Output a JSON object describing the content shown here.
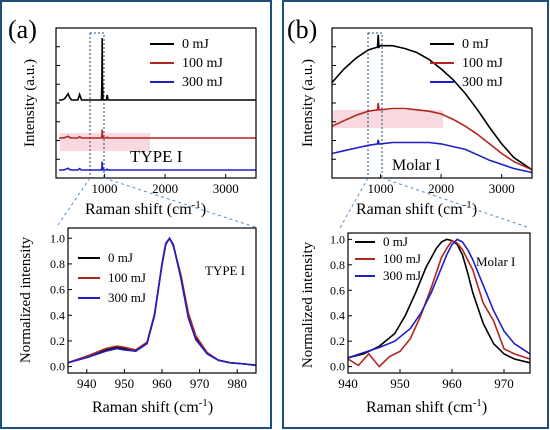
{
  "panels": [
    {
      "letter": "(a)",
      "top": {
        "sample_label": "TYPE I",
        "xlabel": "Raman shift (cm",
        "xlabel_sup": "-1",
        "xlabel_tail": ")",
        "ylabel": "Intensity (a.u.)",
        "xlim": [
          200,
          3500
        ],
        "xticks": [
          "1000",
          "2000",
          "3000"
        ],
        "legend": [
          "0 mJ",
          "100 mJ",
          "300 mJ"
        ]
      },
      "bottom": {
        "sample_label": "TYPE I",
        "xlabel": "Raman shift (cm",
        "xlabel_sup": "-1",
        "xlabel_tail": ")",
        "ylabel": "Normalized intensity",
        "xlim": [
          935,
          985
        ],
        "ylim": [
          -0.05,
          1.08
        ],
        "xticks": [
          "940",
          "950",
          "960",
          "970",
          "980"
        ],
        "yticks": [
          "0.0",
          "0.2",
          "0.4",
          "0.6",
          "0.8",
          "1.0"
        ],
        "legend": [
          "0 mJ",
          "100 mJ",
          "300 mJ"
        ]
      }
    },
    {
      "letter": "(b)",
      "top": {
        "sample_label": "Molar I",
        "xlabel": "Raman shift (cm",
        "xlabel_sup": "-1",
        "xlabel_tail": ")",
        "ylabel": "Intensity (a.u.)",
        "xlim": [
          200,
          3500
        ],
        "xticks": [
          "1000",
          "2000",
          "3000"
        ],
        "legend": [
          "0 mJ",
          "100 mJ",
          "300 mJ"
        ]
      },
      "bottom": {
        "sample_label": "Molar I",
        "xlabel": "Raman shift (cm",
        "xlabel_sup": "-1",
        "xlabel_tail": ")",
        "ylabel": "Normalized intensity",
        "xlim": [
          940,
          975
        ],
        "ylim": [
          -0.05,
          1.05
        ],
        "xticks": [
          "940",
          "950",
          "960",
          "970"
        ],
        "yticks": [
          "0.0",
          "0.2",
          "0.4",
          "0.6",
          "0.8",
          "1.0"
        ],
        "legend": [
          "0 mJ",
          "100 mJ",
          "300 mJ"
        ]
      }
    }
  ],
  "colors": {
    "s0": "#000000",
    "s100": "#b3261e",
    "s300": "#1f1fc8",
    "frame": "#1f4e79",
    "band_fill": "#f5b8c4"
  },
  "chart_data": [
    {
      "type": "line",
      "panel": "a-top",
      "sample_label": "TYPE I",
      "xlabel": "Raman shift (cm-1)",
      "ylabel": "Intensity (a.u.)",
      "xlim": [
        200,
        3500
      ],
      "series": [
        {
          "name": "0 mJ",
          "x": [
            250,
            300,
            340,
            400,
            430,
            460,
            560,
            590,
            620,
            950,
            958,
            962,
            966,
            975,
            1000,
            1030,
            1045,
            1060,
            1100,
            1500,
            2000,
            2500,
            3000,
            3500
          ],
          "y": [
            0.0,
            0.0,
            0.02,
            0.1,
            0.03,
            0.0,
            0.0,
            0.09,
            0.0,
            0.0,
            0.3,
            1.0,
            0.3,
            0.0,
            0.0,
            0.0,
            0.08,
            0.0,
            0.0,
            0.0,
            0.0,
            0.0,
            0.0,
            0.0
          ]
        },
        {
          "name": "100 mJ",
          "x": [
            250,
            300,
            340,
            400,
            430,
            460,
            560,
            590,
            620,
            950,
            958,
            962,
            966,
            975,
            1000,
            1030,
            1045,
            1060,
            1100,
            1500,
            2000,
            2500,
            3000,
            3500
          ],
          "y": [
            0.0,
            0.0,
            0.02,
            0.12,
            0.03,
            0.0,
            0.0,
            0.1,
            0.0,
            0.0,
            0.2,
            0.6,
            0.2,
            0.0,
            0.0,
            0.0,
            0.06,
            0.0,
            0.0,
            0.0,
            0.0,
            0.0,
            0.0,
            0.0
          ]
        },
        {
          "name": "300 mJ",
          "x": [
            250,
            300,
            340,
            400,
            430,
            460,
            560,
            590,
            620,
            950,
            958,
            962,
            966,
            975,
            1000,
            1030,
            1045,
            1060,
            1100,
            1500,
            2000,
            2500,
            3000,
            3500
          ],
          "y": [
            0.0,
            0.0,
            0.02,
            0.12,
            0.03,
            0.0,
            0.0,
            0.1,
            0.0,
            0.0,
            0.2,
            0.6,
            0.2,
            0.0,
            0.0,
            0.0,
            0.06,
            0.0,
            0.0,
            0.0,
            0.0,
            0.0,
            0.0,
            0.0
          ]
        }
      ]
    },
    {
      "type": "line",
      "panel": "a-bottom",
      "sample_label": "TYPE I",
      "xlabel": "Raman shift (cm-1)",
      "ylabel": "Normalized intensity",
      "xlim": [
        935,
        985
      ],
      "ylim": [
        -0.05,
        1.08
      ],
      "series": [
        {
          "name": "0 mJ",
          "x": [
            935,
            940,
            945,
            948,
            950,
            953,
            956,
            958,
            960,
            961,
            962,
            963,
            965,
            967,
            969,
            972,
            975,
            978,
            982,
            985
          ],
          "y": [
            0.03,
            0.08,
            0.13,
            0.15,
            0.14,
            0.12,
            0.18,
            0.4,
            0.8,
            0.96,
            1.0,
            0.95,
            0.7,
            0.4,
            0.22,
            0.1,
            0.05,
            0.03,
            0.02,
            0.01
          ]
        },
        {
          "name": "100 mJ",
          "x": [
            935,
            940,
            945,
            948,
            950,
            953,
            956,
            958,
            960,
            961,
            962,
            963,
            965,
            967,
            969,
            972,
            975,
            978,
            982,
            985
          ],
          "y": [
            0.03,
            0.08,
            0.14,
            0.16,
            0.15,
            0.13,
            0.19,
            0.41,
            0.79,
            0.95,
            1.0,
            0.94,
            0.72,
            0.42,
            0.24,
            0.11,
            0.05,
            0.03,
            0.02,
            0.01
          ]
        },
        {
          "name": "300 mJ",
          "x": [
            935,
            940,
            945,
            948,
            950,
            953,
            956,
            958,
            960,
            961,
            962,
            963,
            965,
            967,
            969,
            972,
            975,
            978,
            982,
            985
          ],
          "y": [
            0.03,
            0.07,
            0.12,
            0.14,
            0.13,
            0.12,
            0.18,
            0.4,
            0.8,
            0.96,
            1.0,
            0.95,
            0.69,
            0.38,
            0.21,
            0.1,
            0.05,
            0.03,
            0.02,
            0.01
          ]
        }
      ]
    },
    {
      "type": "line",
      "panel": "b-top",
      "sample_label": "Molar I",
      "xlabel": "Raman shift (cm-1)",
      "ylabel": "Intensity (a.u.)",
      "xlim": [
        200,
        3500
      ],
      "series": [
        {
          "name": "0 mJ",
          "x": [
            200,
            400,
            600,
            800,
            950,
            962,
            975,
            1000,
            1200,
            1400,
            1600,
            1800,
            2000,
            2200,
            2400,
            2600,
            2800,
            3000,
            3200,
            3500
          ],
          "y": [
            0.7,
            0.8,
            0.88,
            0.94,
            0.96,
            1.05,
            0.96,
            0.97,
            0.97,
            0.95,
            0.92,
            0.87,
            0.8,
            0.72,
            0.62,
            0.5,
            0.37,
            0.25,
            0.15,
            0.06
          ]
        },
        {
          "name": "100 mJ",
          "x": [
            200,
            400,
            600,
            800,
            950,
            962,
            975,
            1000,
            1200,
            1400,
            1600,
            1800,
            2000,
            2200,
            2400,
            2600,
            2800,
            3000,
            3200,
            3500
          ],
          "y": [
            0.38,
            0.42,
            0.46,
            0.49,
            0.5,
            0.55,
            0.5,
            0.5,
            0.51,
            0.51,
            0.5,
            0.49,
            0.47,
            0.43,
            0.38,
            0.32,
            0.25,
            0.18,
            0.12,
            0.06
          ]
        },
        {
          "name": "300 mJ",
          "x": [
            200,
            400,
            600,
            800,
            950,
            962,
            975,
            1000,
            1200,
            1400,
            1600,
            1800,
            2000,
            2200,
            2400,
            2600,
            2800,
            3000,
            3200,
            3500
          ],
          "y": [
            0.18,
            0.2,
            0.22,
            0.24,
            0.25,
            0.28,
            0.25,
            0.25,
            0.26,
            0.26,
            0.26,
            0.26,
            0.25,
            0.23,
            0.21,
            0.17,
            0.13,
            0.1,
            0.07,
            0.04
          ]
        }
      ]
    },
    {
      "type": "line",
      "panel": "b-bottom",
      "sample_label": "Molar I",
      "xlabel": "Raman shift (cm-1)",
      "ylabel": "Normalized intensity",
      "xlim": [
        940,
        975
      ],
      "ylim": [
        -0.05,
        1.05
      ],
      "series": [
        {
          "name": "0 mJ",
          "x": [
            940,
            943,
            946,
            949,
            951,
            953,
            955,
            957,
            958,
            959,
            960,
            961,
            962,
            963,
            964,
            966,
            968,
            970,
            972,
            975
          ],
          "y": [
            0.07,
            0.1,
            0.16,
            0.26,
            0.4,
            0.58,
            0.78,
            0.93,
            0.98,
            1.0,
            0.99,
            0.96,
            0.88,
            0.74,
            0.58,
            0.34,
            0.18,
            0.1,
            0.06,
            0.03
          ]
        },
        {
          "name": "100 mJ",
          "x": [
            940,
            942,
            944,
            946,
            948,
            950,
            952,
            954,
            956,
            958,
            959,
            960,
            961,
            962,
            964,
            966,
            968,
            970,
            972,
            975
          ],
          "y": [
            0.06,
            0.01,
            0.1,
            0.0,
            0.08,
            0.12,
            0.22,
            0.4,
            0.62,
            0.86,
            0.93,
            0.99,
            0.97,
            0.92,
            0.76,
            0.5,
            0.36,
            0.14,
            0.1,
            0.06
          ]
        },
        {
          "name": "300 mJ",
          "x": [
            940,
            943,
            946,
            949,
            952,
            954,
            956,
            958,
            959,
            960,
            961,
            962,
            963,
            964,
            966,
            968,
            970,
            972,
            975
          ],
          "y": [
            0.07,
            0.11,
            0.15,
            0.2,
            0.3,
            0.42,
            0.58,
            0.78,
            0.88,
            0.96,
            1.0,
            0.98,
            0.92,
            0.84,
            0.64,
            0.44,
            0.28,
            0.18,
            0.1
          ]
        }
      ]
    }
  ]
}
